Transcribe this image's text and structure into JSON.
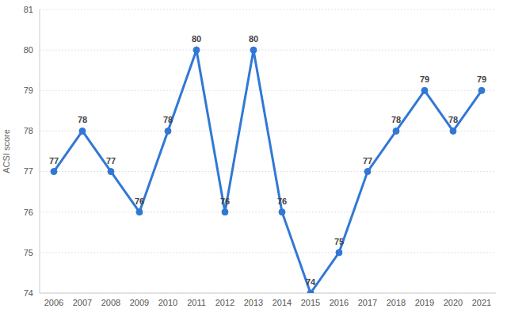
{
  "chart_data": {
    "type": "line",
    "y_label": "ACSI score",
    "categories": [
      "2006",
      "2007",
      "2008",
      "2009",
      "2010",
      "2011",
      "2012",
      "2013",
      "2014",
      "2015",
      "2016",
      "2017",
      "2018",
      "2019",
      "2020",
      "2021"
    ],
    "values": [
      77,
      78,
      77,
      76,
      78,
      80,
      76,
      80,
      76,
      74,
      75,
      77,
      78,
      79,
      78,
      79
    ],
    "color": "#3178d6",
    "ylim": [
      74,
      81
    ],
    "yticks": [
      74,
      75,
      76,
      77,
      78,
      79,
      80,
      81
    ],
    "grid": true,
    "data_labels": true,
    "marker": "circle"
  }
}
